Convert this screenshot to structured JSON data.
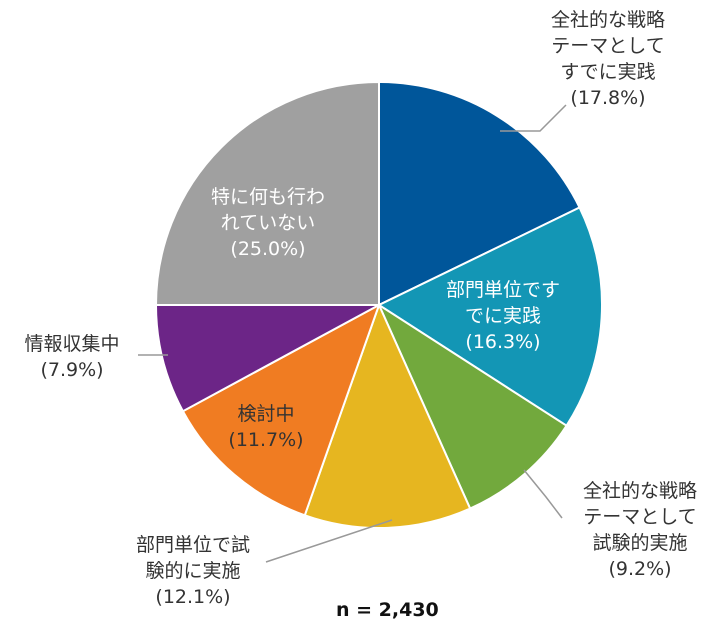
{
  "chart_data": {
    "type": "pie",
    "start_angle_deg": 0,
    "direction": "clockwise",
    "slices": [
      {
        "label_lines": [
          "全社的な戦略",
          "テーマとして",
          "すでに実践"
        ],
        "value_label": "(17.8%)",
        "value": 17.8,
        "color": "#00569a"
      },
      {
        "label_lines": [
          "部門単位です",
          "でに実践"
        ],
        "value_label": "(16.3%)",
        "value": 16.3,
        "color": "#1396b5"
      },
      {
        "label_lines": [
          "全社的な戦略",
          "テーマとして",
          "試験的実施"
        ],
        "value_label": "(9.2%)",
        "value": 9.2,
        "color": "#72a93d"
      },
      {
        "label_lines": [
          "部門単位で試",
          "験的に実施"
        ],
        "value_label": "(12.1%)",
        "value": 12.1,
        "color": "#e6b620"
      },
      {
        "label_lines": [
          "検討中"
        ],
        "value_label": "(11.7%)",
        "value": 11.7,
        "color": "#f07c22"
      },
      {
        "label_lines": [
          "情報収集中"
        ],
        "value_label": "(7.9%)",
        "value": 7.9,
        "color": "#6c2587"
      },
      {
        "label_lines": [
          "特に何も行わ",
          "れていない"
        ],
        "value_label": "(25.0%)",
        "value": 25.0,
        "color": "#a0a0a0"
      }
    ],
    "note": "n = 2,430"
  }
}
